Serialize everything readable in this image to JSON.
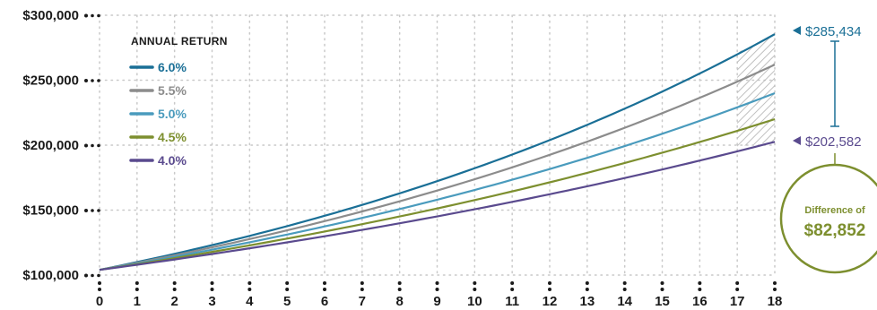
{
  "chart_data": {
    "type": "line",
    "x": [
      0,
      1,
      2,
      3,
      4,
      5,
      6,
      7,
      8,
      9,
      10,
      11,
      12,
      13,
      14,
      15,
      16,
      17,
      18
    ],
    "x_tick_labels": [
      "0",
      "1",
      "2",
      "3",
      "4",
      "5",
      "6",
      "7",
      "8",
      "9",
      "10",
      "11",
      "12",
      "13",
      "14",
      "15",
      "16",
      "17",
      "18"
    ],
    "y_tick_values": [
      100000,
      150000,
      200000,
      250000,
      300000
    ],
    "y_tick_labels": [
      "$100,000",
      "$150,000",
      "$200,000",
      "$250,000",
      "$300,000"
    ],
    "ylim": [
      100000,
      300000
    ],
    "xlim": [
      0,
      18
    ],
    "grid": "dotted",
    "legend": {
      "title": "ANNUAL RETURN",
      "placement": "top-left"
    },
    "series": [
      {
        "name": "6.0%",
        "color": "#1a6f96",
        "rate": 0.06,
        "values": [
          104000,
          110400,
          117000,
          124000,
          131400,
          139300,
          147600,
          156500,
          165900,
          175800,
          186400,
          197600,
          209400,
          222000,
          235300,
          249400,
          264400,
          280300,
          285434
        ]
      },
      {
        "name": "5.5%",
        "color": "#8c8c8c",
        "rate": 0.055,
        "values": [
          104000,
          109700,
          115700,
          122000,
          128700,
          135800,
          143300,
          151200,
          159500,
          168200,
          177500,
          187200,
          197500,
          208400,
          219800,
          231900,
          244700,
          258100,
          262000
        ]
      },
      {
        "name": "5.0%",
        "color": "#4a9bbd",
        "rate": 0.05,
        "values": [
          104000,
          109000,
          114400,
          120000,
          126000,
          132300,
          138900,
          145800,
          153100,
          160700,
          168700,
          177100,
          185900,
          195200,
          205000,
          215200,
          226000,
          237300,
          240000
        ]
      },
      {
        "name": "4.5%",
        "color": "#7d8f2f",
        "rate": 0.045,
        "values": [
          104000,
          108300,
          113100,
          118100,
          123400,
          128900,
          134700,
          140800,
          147100,
          153700,
          160600,
          167800,
          175400,
          183300,
          191500,
          200100,
          209100,
          218500,
          220000
        ]
      },
      {
        "name": "4.0%",
        "color": "#5a4a8e",
        "rate": 0.04,
        "values": [
          104000,
          107800,
          112100,
          116500,
          121100,
          125900,
          130900,
          136100,
          141500,
          147100,
          152900,
          159000,
          165300,
          171900,
          178700,
          185800,
          193200,
          200800,
          202582
        ]
      }
    ],
    "annotations": {
      "top_value_label": "$285,434",
      "top_value_color": "#1a6f96",
      "bottom_value_label": "$202,582",
      "bottom_value_color": "#5a4a8e",
      "difference_caption": "Difference of",
      "difference_value": "$82,852",
      "difference_color": "#7d8f2f"
    }
  }
}
